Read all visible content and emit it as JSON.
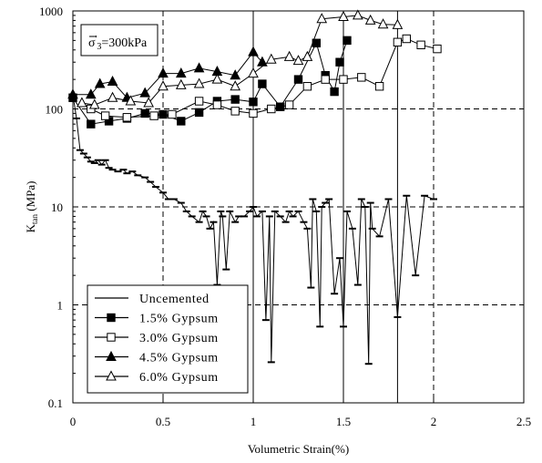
{
  "chart_data": {
    "type": "line",
    "xlabel": "Volumetric Strain(%)",
    "ylabel": {
      "main": "K",
      "sub": "tan",
      "rest": " (MPa)"
    },
    "annotation": {
      "sigma": "σ",
      "prime": "'",
      "sub": "3",
      "rest": "=300kPa"
    },
    "xlim": [
      0,
      2.5
    ],
    "ylim": [
      0.1,
      1000
    ],
    "yscale": "log",
    "grid": "dashed",
    "x_ticks": [
      "0",
      "0.5",
      "1",
      "1.5",
      "2",
      "2.5"
    ],
    "x_tick_values": [
      0,
      0.5,
      1,
      1.5,
      2,
      2.5
    ],
    "y_ticks": [
      "0.1",
      "1",
      "10",
      "100",
      "1000"
    ],
    "y_tick_values": [
      0.1,
      1,
      10,
      100,
      1000
    ],
    "vertical_lines_x": [
      1.0,
      1.5,
      1.8
    ],
    "legend_position": "bottom-left",
    "series": [
      {
        "name": "Uncemented",
        "marker": "dash",
        "color": "#000000",
        "x": [
          0.0,
          0.02,
          0.04,
          0.06,
          0.08,
          0.1,
          0.12,
          0.14,
          0.16,
          0.18,
          0.2,
          0.22,
          0.25,
          0.28,
          0.3,
          0.33,
          0.36,
          0.4,
          0.43,
          0.46,
          0.5,
          0.53,
          0.56,
          0.6,
          0.63,
          0.66,
          0.7,
          0.72,
          0.74,
          0.76,
          0.78,
          0.8,
          0.82,
          0.83,
          0.85,
          0.87,
          0.9,
          0.92,
          0.95,
          0.98,
          1.0,
          1.02,
          1.05,
          1.07,
          1.09,
          1.1,
          1.12,
          1.15,
          1.18,
          1.2,
          1.22,
          1.25,
          1.28,
          1.3,
          1.32,
          1.33,
          1.35,
          1.37,
          1.38,
          1.4,
          1.42,
          1.45,
          1.48,
          1.5,
          1.52,
          1.55,
          1.58,
          1.6,
          1.62,
          1.64,
          1.65,
          1.66,
          1.7,
          1.75,
          1.8,
          1.85,
          1.9,
          1.95,
          2.0
        ],
        "y": [
          140,
          80,
          38,
          35,
          32,
          29,
          28,
          30,
          27,
          30,
          25,
          24,
          23,
          24,
          22,
          23,
          21,
          20,
          18,
          16,
          14,
          12,
          12,
          11,
          9,
          8,
          7,
          9,
          8,
          6,
          7,
          1.6,
          9,
          8,
          2.3,
          9,
          7,
          8,
          8,
          9,
          10,
          8,
          9,
          0.7,
          8,
          0.26,
          9,
          8,
          7,
          9,
          8,
          9,
          7,
          6,
          1.5,
          12,
          9,
          0.6,
          10,
          11,
          12,
          1.3,
          3,
          0.6,
          9,
          6,
          1.6,
          12,
          10,
          0.25,
          11,
          6,
          5,
          12,
          0.75,
          13,
          2,
          13,
          12
        ]
      },
      {
        "name": "1.5% Gypsum",
        "marker": "filled-square",
        "color": "#000000",
        "x": [
          0.0,
          0.1,
          0.2,
          0.3,
          0.4,
          0.5,
          0.6,
          0.7,
          0.8,
          0.9,
          1.0,
          1.05,
          1.15,
          1.25,
          1.35,
          1.4,
          1.45,
          1.48,
          1.52
        ],
        "y": [
          130,
          70,
          75,
          80,
          90,
          88,
          75,
          92,
          120,
          125,
          118,
          180,
          105,
          200,
          470,
          220,
          150,
          300,
          500
        ]
      },
      {
        "name": "3.0% Gypsum",
        "marker": "open-square",
        "color": "#000000",
        "x": [
          0.1,
          0.18,
          0.3,
          0.45,
          0.55,
          0.7,
          0.8,
          0.9,
          1.0,
          1.1,
          1.2,
          1.3,
          1.4,
          1.5,
          1.6,
          1.7,
          1.8,
          1.85,
          1.93,
          2.02
        ],
        "y": [
          100,
          85,
          82,
          85,
          88,
          120,
          110,
          95,
          90,
          100,
          110,
          170,
          200,
          200,
          210,
          170,
          480,
          520,
          450,
          410
        ]
      },
      {
        "name": "4.5% Gypsum",
        "marker": "filled-triangle",
        "color": "#000000",
        "x": [
          0.0,
          0.1,
          0.15,
          0.22,
          0.3,
          0.4,
          0.5,
          0.6,
          0.7,
          0.8,
          0.9,
          1.0,
          1.05
        ],
        "y": [
          140,
          140,
          180,
          190,
          130,
          145,
          230,
          230,
          260,
          240,
          220,
          380,
          300
        ]
      },
      {
        "name": "6.0% Gypsum",
        "marker": "open-triangle",
        "color": "#000000",
        "x": [
          0.05,
          0.12,
          0.22,
          0.32,
          0.42,
          0.5,
          0.6,
          0.7,
          0.8,
          0.9,
          1.0,
          1.1,
          1.2,
          1.25,
          1.3,
          1.38,
          1.5,
          1.58,
          1.65,
          1.72,
          1.8
        ],
        "y": [
          115,
          110,
          130,
          120,
          115,
          170,
          175,
          180,
          200,
          170,
          230,
          320,
          340,
          310,
          340,
          830,
          870,
          900,
          800,
          730,
          720
        ]
      }
    ]
  }
}
